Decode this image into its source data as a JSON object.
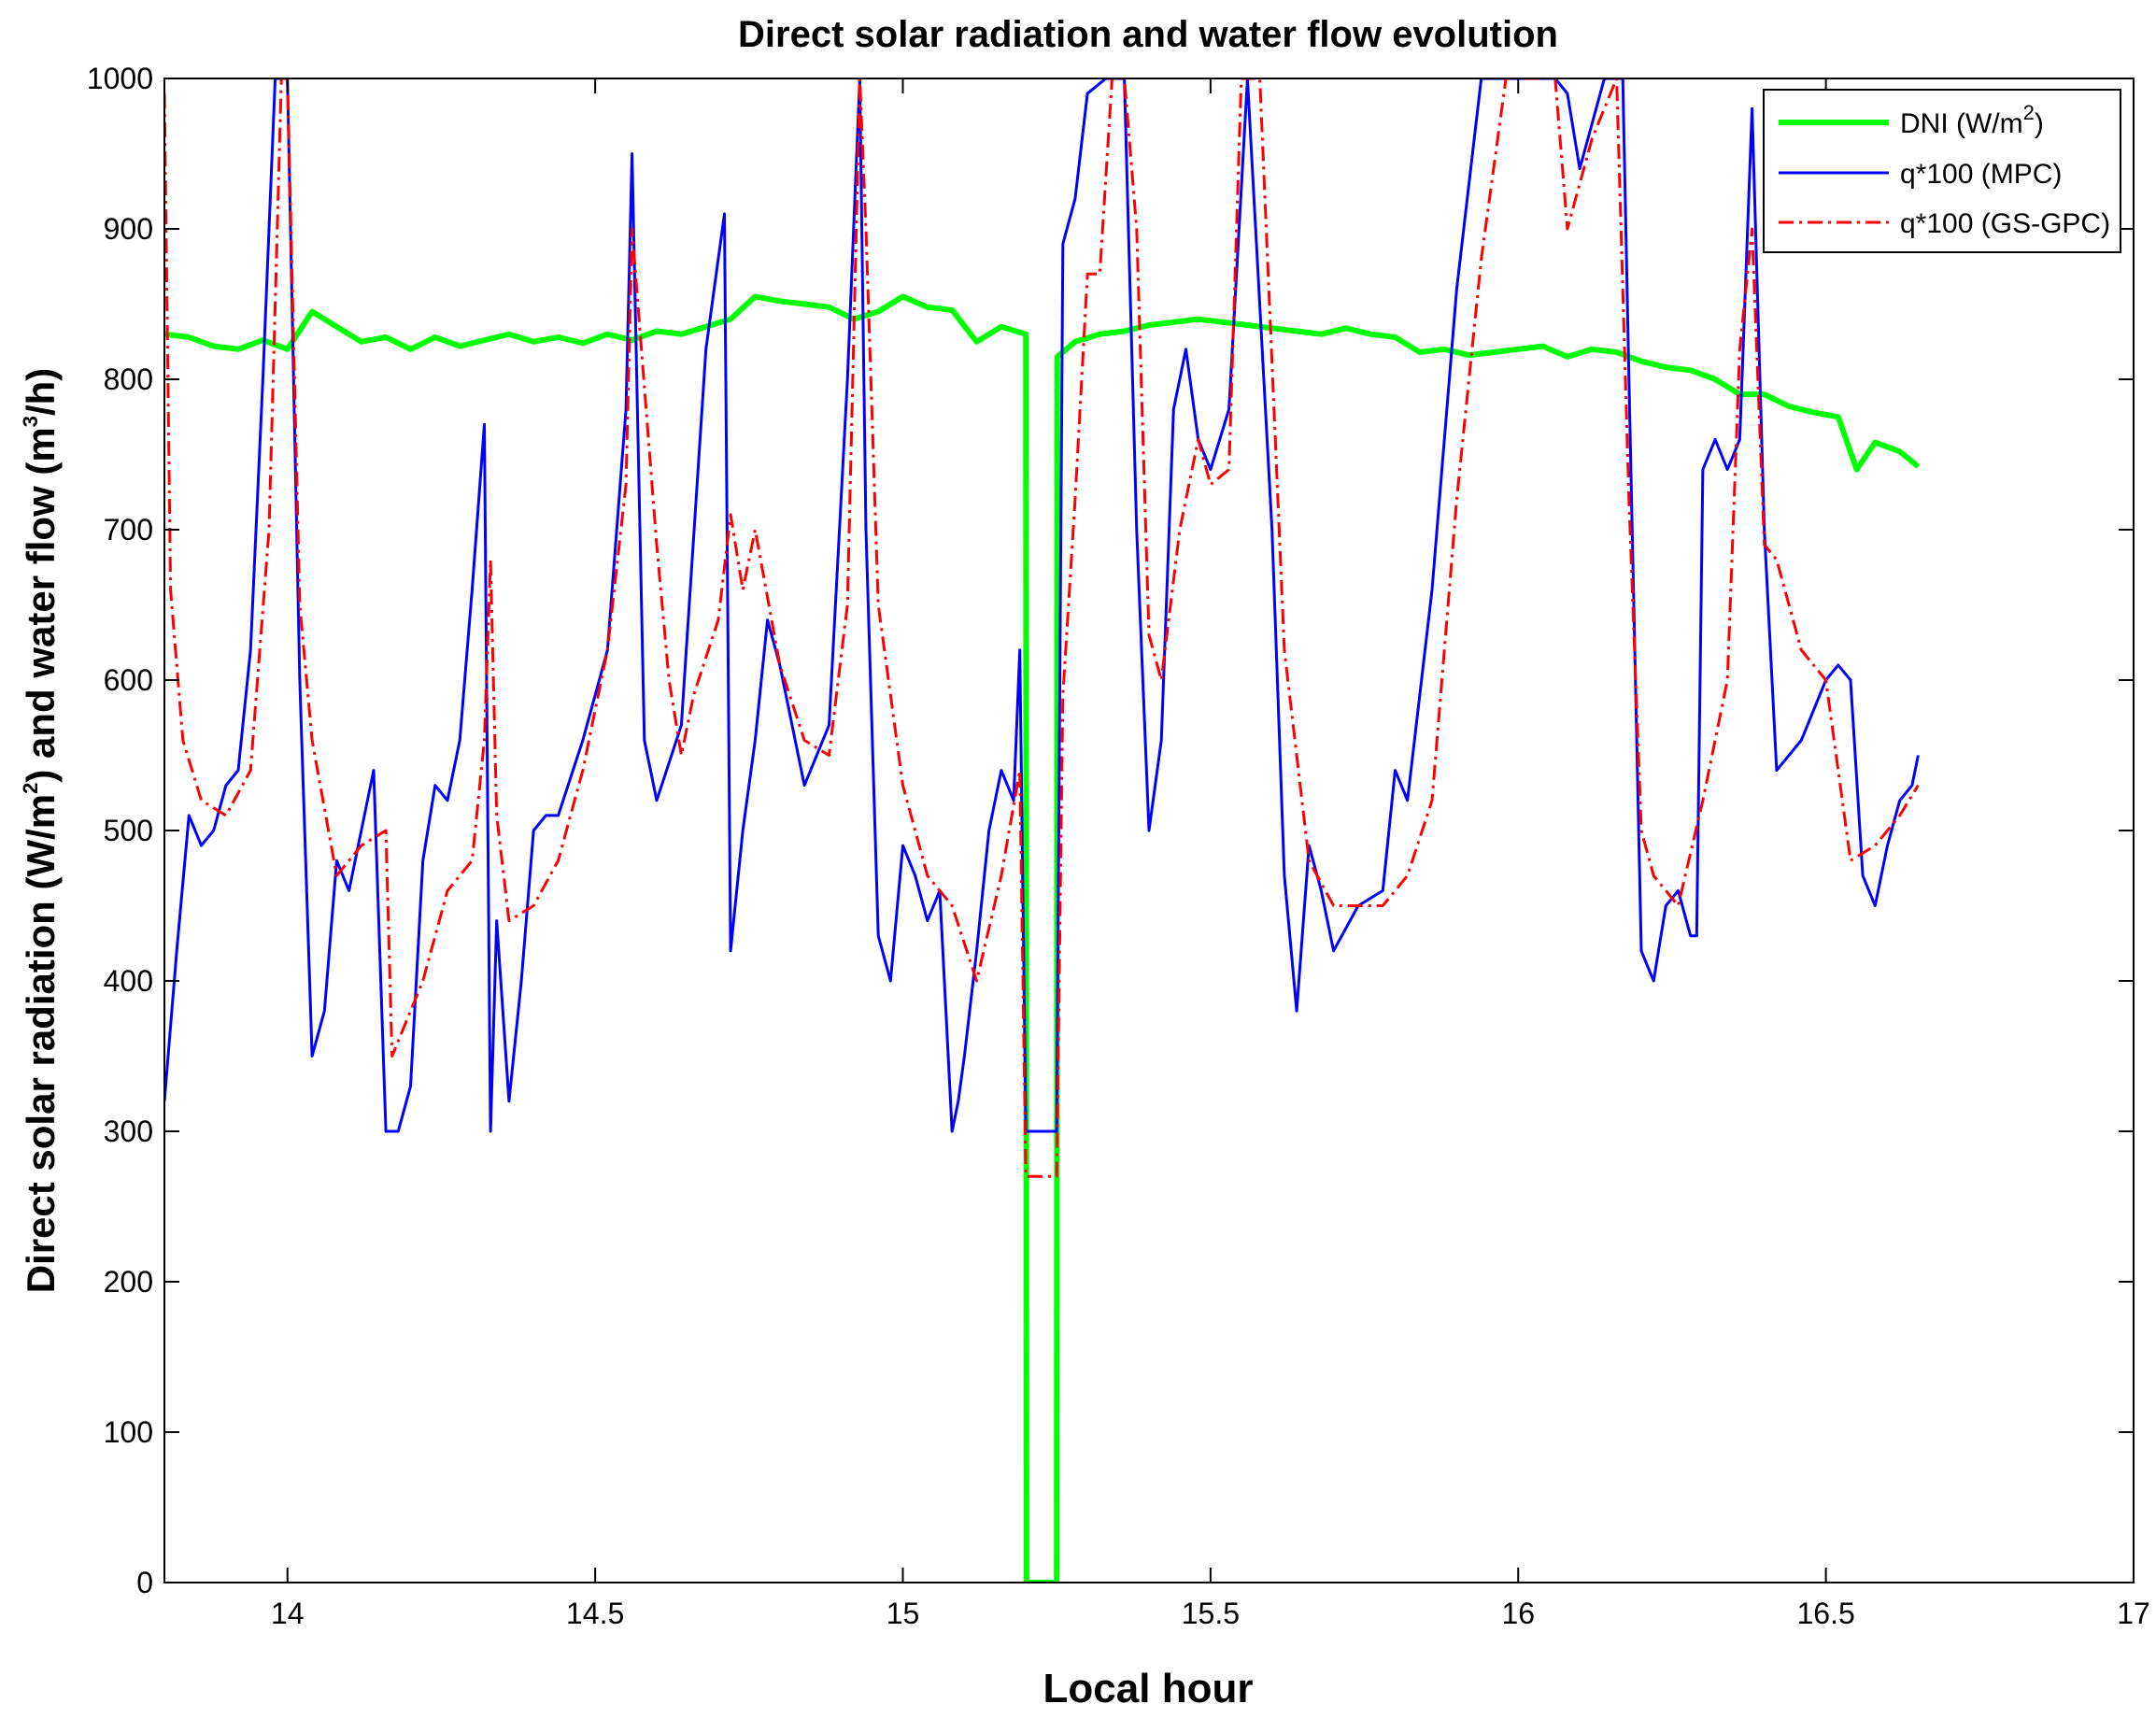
{
  "chart_data": {
    "type": "line",
    "title": "Direct solar radiation and water flow evolution",
    "xlabel": "Local hour",
    "ylabel_parts": [
      "Direct solar radiation (W/m",
      "2",
      ") and water flow (m",
      "3",
      "/h)"
    ],
    "xlim": [
      13.8,
      17
    ],
    "ylim": [
      0,
      1000
    ],
    "xticks": [
      14,
      14.5,
      15,
      15.5,
      16,
      16.5,
      17
    ],
    "xtick_labels": [
      "14",
      "14.5",
      "15",
      "15.5",
      "16",
      "16.5",
      "17"
    ],
    "yticks": [
      0,
      100,
      200,
      300,
      400,
      500,
      600,
      700,
      800,
      900,
      1000
    ],
    "ytick_labels": [
      "0",
      "100",
      "200",
      "300",
      "400",
      "500",
      "600",
      "700",
      "800",
      "900",
      "1000"
    ],
    "grid": false,
    "legend_position": "top-right",
    "series": [
      {
        "name": "DNI (W/m",
        "name_sup": "2",
        "name_suffix": ")",
        "color": "#00ff00",
        "style": "solid",
        "width": "thick",
        "x": [
          13.8,
          13.84,
          13.88,
          13.92,
          13.96,
          14.0,
          14.04,
          14.08,
          14.12,
          14.16,
          14.2,
          14.24,
          14.28,
          14.32,
          14.36,
          14.4,
          14.44,
          14.48,
          14.52,
          14.56,
          14.6,
          14.64,
          14.68,
          14.72,
          14.76,
          14.8,
          14.84,
          14.88,
          14.92,
          14.96,
          15.0,
          15.04,
          15.08,
          15.12,
          15.16,
          15.2,
          15.201,
          15.25,
          15.251,
          15.28,
          15.32,
          15.36,
          15.4,
          15.44,
          15.48,
          15.52,
          15.56,
          15.6,
          15.64,
          15.68,
          15.72,
          15.76,
          15.8,
          15.84,
          15.88,
          15.92,
          15.96,
          16.0,
          16.04,
          16.08,
          16.12,
          16.16,
          16.2,
          16.24,
          16.28,
          16.32,
          16.36,
          16.4,
          16.44,
          16.48,
          16.52,
          16.55,
          16.58,
          16.62,
          16.65
        ],
        "values": [
          830,
          828,
          822,
          820,
          826,
          820,
          845,
          835,
          825,
          828,
          820,
          828,
          822,
          826,
          830,
          825,
          828,
          824,
          830,
          826,
          832,
          830,
          835,
          840,
          855,
          852,
          850,
          848,
          840,
          845,
          855,
          848,
          846,
          825,
          835,
          830,
          0,
          0,
          815,
          825,
          830,
          832,
          836,
          838,
          840,
          838,
          836,
          834,
          832,
          830,
          834,
          830,
          828,
          818,
          820,
          816,
          818,
          820,
          822,
          815,
          820,
          818,
          812,
          808,
          806,
          800,
          790,
          790,
          782,
          778,
          775,
          740,
          758,
          752,
          742
        ]
      },
      {
        "name": "q*100 (MPC)",
        "color": "#0000ff",
        "style": "solid",
        "width": "thin",
        "x": [
          13.8,
          13.82,
          13.84,
          13.86,
          13.88,
          13.9,
          13.92,
          13.94,
          13.96,
          13.98,
          13.99,
          14.0,
          14.02,
          14.04,
          14.06,
          14.08,
          14.1,
          14.12,
          14.14,
          14.16,
          14.18,
          14.2,
          14.22,
          14.24,
          14.26,
          14.28,
          14.3,
          14.32,
          14.33,
          14.34,
          14.36,
          14.38,
          14.4,
          14.42,
          14.44,
          14.48,
          14.52,
          14.55,
          14.56,
          14.58,
          14.6,
          14.64,
          14.68,
          14.71,
          14.72,
          14.74,
          14.76,
          14.78,
          14.8,
          14.84,
          14.88,
          14.91,
          14.93,
          14.94,
          14.96,
          14.98,
          15.0,
          15.02,
          15.04,
          15.06,
          15.08,
          15.09,
          15.1,
          15.12,
          15.14,
          15.16,
          15.18,
          15.19,
          15.2,
          15.21,
          15.25,
          15.26,
          15.28,
          15.3,
          15.33,
          15.36,
          15.38,
          15.4,
          15.42,
          15.44,
          15.46,
          15.48,
          15.5,
          15.53,
          15.56,
          15.6,
          15.62,
          15.64,
          15.66,
          15.68,
          15.7,
          15.74,
          15.78,
          15.8,
          15.82,
          15.86,
          15.9,
          15.94,
          15.98,
          16.0,
          16.04,
          16.06,
          16.08,
          16.1,
          16.14,
          16.17,
          16.18,
          16.2,
          16.22,
          16.24,
          16.26,
          16.28,
          16.29,
          16.3,
          16.32,
          16.34,
          16.36,
          16.38,
          16.4,
          16.42,
          16.46,
          16.5,
          16.52,
          16.54,
          16.56,
          16.58,
          16.6,
          16.62,
          16.64,
          16.65
        ],
        "values": [
          320,
          420,
          510,
          490,
          500,
          530,
          540,
          620,
          800,
          1000,
          1000,
          1000,
          600,
          350,
          380,
          480,
          460,
          500,
          540,
          300,
          300,
          330,
          480,
          530,
          520,
          560,
          660,
          770,
          300,
          440,
          320,
          400,
          500,
          510,
          510,
          560,
          620,
          780,
          950,
          560,
          520,
          570,
          820,
          910,
          420,
          500,
          560,
          640,
          610,
          530,
          570,
          800,
          1000,
          700,
          430,
          400,
          490,
          470,
          440,
          460,
          300,
          320,
          350,
          420,
          500,
          540,
          520,
          620,
          300,
          300,
          300,
          890,
          920,
          990,
          1000,
          1000,
          700,
          500,
          560,
          780,
          820,
          760,
          740,
          780,
          1000,
          700,
          470,
          380,
          490,
          460,
          420,
          450,
          460,
          540,
          520,
          660,
          860,
          1000,
          1000,
          1000,
          1000,
          1000,
          990,
          940,
          1000,
          1000,
          800,
          420,
          400,
          450,
          460,
          430,
          430,
          740,
          760,
          740,
          760,
          980,
          700,
          540,
          560,
          600,
          610,
          600,
          470,
          450,
          490,
          520,
          530,
          550
        ]
      },
      {
        "name": "q*100 (GS-GPC)",
        "color": "#ff0000",
        "style": "dashdot",
        "width": "thin",
        "x": [
          13.8,
          13.81,
          13.83,
          13.86,
          13.9,
          13.94,
          13.97,
          13.99,
          14.0,
          14.02,
          14.04,
          14.08,
          14.12,
          14.16,
          14.17,
          14.2,
          14.22,
          14.26,
          14.3,
          14.32,
          14.33,
          14.34,
          14.36,
          14.4,
          14.44,
          14.48,
          14.52,
          14.55,
          14.56,
          14.6,
          14.62,
          14.64,
          14.66,
          14.7,
          14.72,
          14.74,
          14.76,
          14.8,
          14.84,
          14.88,
          14.91,
          14.93,
          14.94,
          14.96,
          15.0,
          15.04,
          15.08,
          15.12,
          15.16,
          15.19,
          15.2,
          15.21,
          15.25,
          15.26,
          15.28,
          15.3,
          15.32,
          15.34,
          15.36,
          15.38,
          15.4,
          15.42,
          15.45,
          15.48,
          15.5,
          15.53,
          15.55,
          15.58,
          15.62,
          15.66,
          15.7,
          15.74,
          15.78,
          15.82,
          15.86,
          15.9,
          15.94,
          15.98,
          16.02,
          16.06,
          16.08,
          16.12,
          16.16,
          16.18,
          16.2,
          16.22,
          16.26,
          16.3,
          16.34,
          16.36,
          16.38,
          16.4,
          16.42,
          16.46,
          16.5,
          16.54,
          16.58,
          16.62,
          16.65
        ],
        "values": [
          990,
          660,
          560,
          520,
          510,
          540,
          700,
          1000,
          1000,
          650,
          560,
          470,
          490,
          500,
          350,
          380,
          400,
          460,
          480,
          560,
          680,
          510,
          440,
          450,
          480,
          540,
          620,
          730,
          900,
          690,
          600,
          550,
          590,
          640,
          710,
          660,
          700,
          610,
          560,
          550,
          650,
          1000,
          900,
          650,
          530,
          470,
          450,
          400,
          470,
          540,
          270,
          270,
          270,
          590,
          720,
          870,
          870,
          1000,
          1000,
          900,
          630,
          600,
          700,
          760,
          730,
          740,
          1000,
          1000,
          620,
          480,
          450,
          450,
          450,
          470,
          520,
          720,
          880,
          1000,
          1000,
          1000,
          900,
          960,
          1000,
          720,
          500,
          470,
          450,
          520,
          600,
          820,
          900,
          690,
          680,
          620,
          600,
          480,
          490,
          510,
          530
        ]
      }
    ]
  }
}
